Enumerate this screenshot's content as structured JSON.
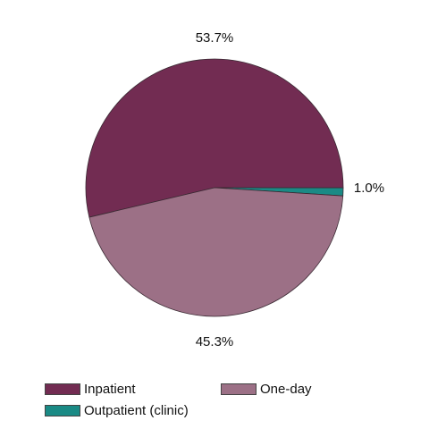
{
  "chart_data": {
    "type": "pie",
    "title": "",
    "categories": [
      "Inpatient",
      "Outpatient (clinic)",
      "One-day"
    ],
    "values": [
      53.7,
      1.0,
      45.3
    ],
    "value_labels": [
      "53.7%",
      "1.0%",
      "45.3%"
    ],
    "colors": [
      "#722c52",
      "#1a8a85",
      "#9c7086"
    ],
    "legend_position": "bottom"
  }
}
